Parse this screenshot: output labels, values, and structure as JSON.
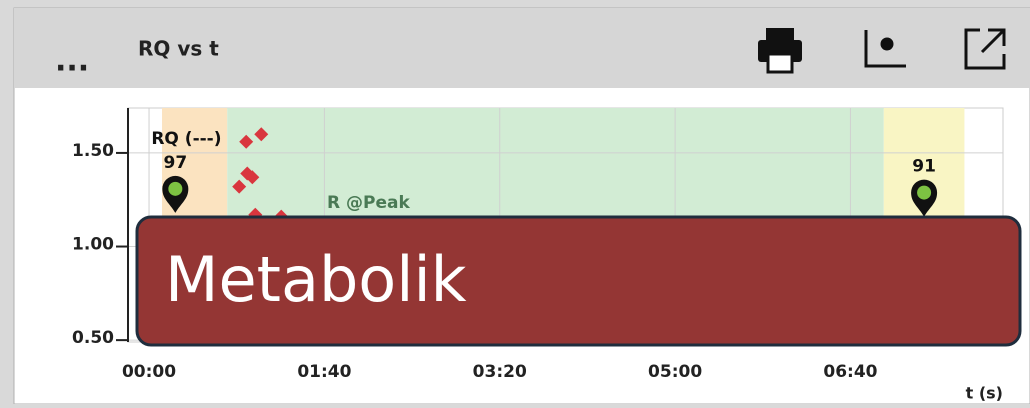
{
  "header": {
    "menu": "...",
    "title": "RQ vs t"
  },
  "chart_data": {
    "type": "scatter",
    "x": [
      51.4,
      55.4,
      56,
      58.9,
      60.6,
      64,
      75.4
    ],
    "values": [
      1.32,
      1.56,
      1.39,
      1.37,
      1.17,
      1.6,
      1.16
    ],
    "color": "#d9363e",
    "xlim": [
      -12,
      487
    ],
    "ylim": [
      0.49,
      1.74
    ],
    "xticks": [
      {
        "value": 0,
        "label": "00:00"
      },
      {
        "value": 100,
        "label": "01:40"
      },
      {
        "value": 200,
        "label": "03:20"
      },
      {
        "value": 300,
        "label": "05:00"
      },
      {
        "value": 400,
        "label": "06:40"
      }
    ],
    "yticks": [
      {
        "value": 0.5,
        "label": "0.50"
      },
      {
        "value": 1,
        "label": "1.00"
      },
      {
        "value": 1.5,
        "label": "1.50"
      }
    ],
    "grid": true,
    "xlabel": "t (s)",
    "bands": [
      {
        "from": 7.4,
        "to": 44.6,
        "color": "#fbe3c0"
      },
      {
        "from": 44.6,
        "to": 419,
        "color": "#d2ecd4"
      },
      {
        "from": 419,
        "to": 465,
        "color": "#f9f5c4"
      }
    ],
    "pins": [
      {
        "x": 15,
        "y": 1.18,
        "label": "97",
        "caption": "RQ (---)"
      },
      {
        "x": 442,
        "y": 1.16,
        "label": "91"
      }
    ],
    "annotation": "R @Peak"
  },
  "overlay": {
    "text": "Metabolik"
  }
}
